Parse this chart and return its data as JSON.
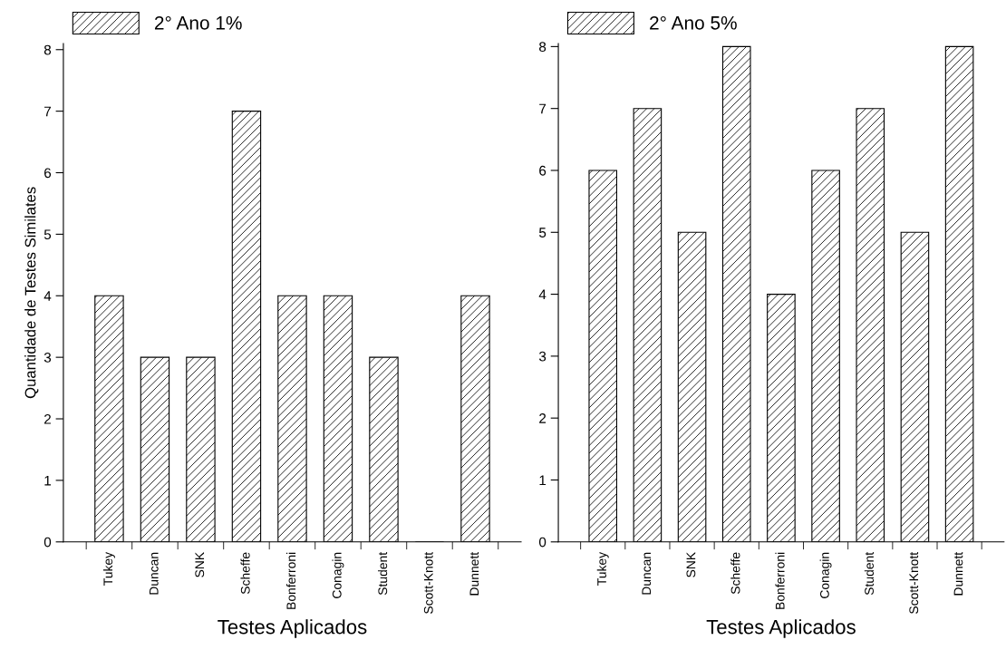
{
  "chart_data": [
    {
      "type": "bar",
      "xlabel": "Testes Aplicados",
      "ylabel": "Quantidade de Testes Similates",
      "categories": [
        "Tukey",
        "Duncan",
        "SNK",
        "Scheffe",
        "Bonferroni",
        "Conagin",
        "Student",
        "Scott-Knott",
        "Dunnett"
      ],
      "series": [
        {
          "name": "2° Ano 1%",
          "color": "#000000",
          "values": [
            4,
            3,
            3,
            7,
            4,
            4,
            3,
            0,
            4
          ]
        }
      ],
      "ylim": [
        0,
        8.1
      ],
      "yticks": [
        0,
        1,
        2,
        3,
        4,
        5,
        6,
        7,
        8
      ],
      "grid": false,
      "legend": "top left"
    },
    {
      "type": "bar",
      "xlabel": "Testes Aplicados",
      "categories": [
        "Tukey",
        "Duncan",
        "SNK",
        "Scheffe",
        "Bonferroni",
        "Conagin",
        "Student",
        "Scott-Knott",
        "Dunnett"
      ],
      "series": [
        {
          "name": "2° Ano 5%",
          "color": "#000000",
          "values": [
            6,
            7,
            5,
            8,
            4,
            6,
            7,
            5,
            8
          ]
        }
      ],
      "ylim": [
        0,
        8.05
      ],
      "yticks": [
        0,
        1,
        2,
        3,
        4,
        5,
        6,
        7,
        8
      ],
      "grid": false,
      "legend": "top left"
    }
  ]
}
